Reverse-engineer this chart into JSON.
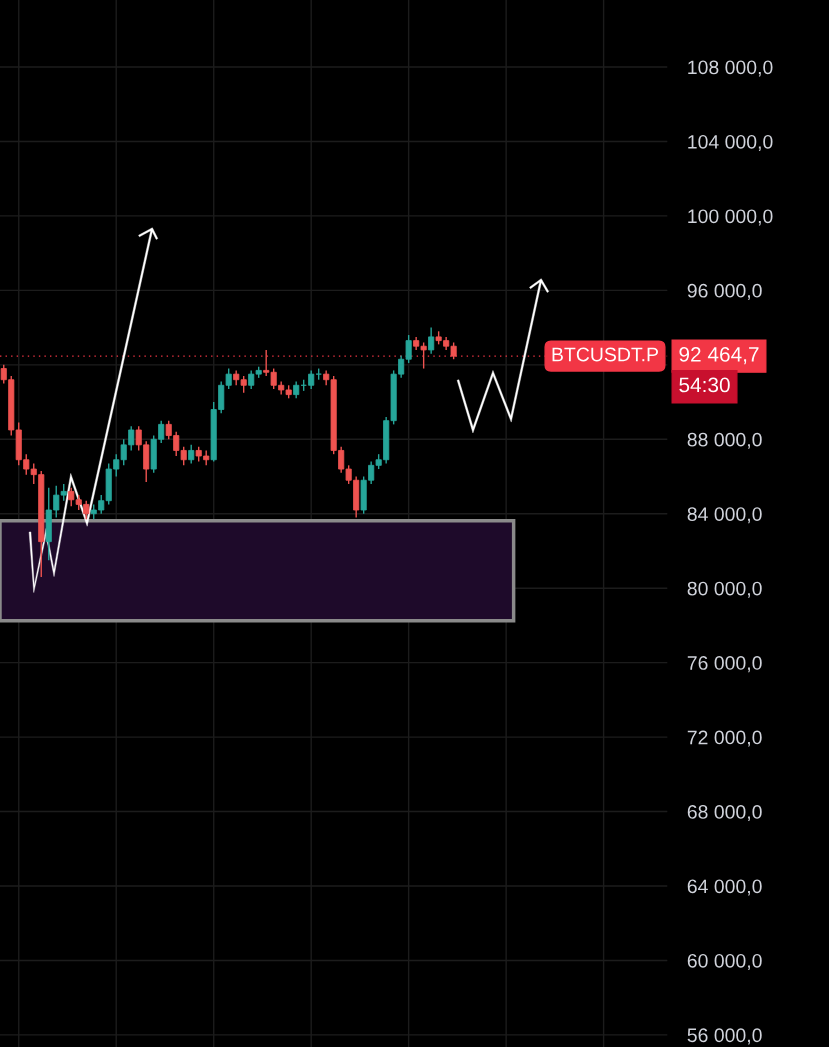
{
  "chart_data": {
    "type": "candlestick",
    "categories": [
      null,
      null,
      null,
      null,
      null,
      null,
      null,
      null,
      null,
      null,
      null,
      null,
      null,
      null,
      null,
      null,
      null,
      null,
      null,
      null,
      null,
      null,
      null,
      null,
      null,
      null,
      null,
      null,
      null,
      null,
      null,
      null,
      null,
      null,
      null,
      null,
      null,
      null,
      null,
      null,
      null,
      null,
      null,
      null,
      null,
      null,
      null,
      null,
      null,
      null,
      null,
      null,
      null,
      null,
      null,
      null,
      null,
      null,
      null,
      null,
      null,
      null,
      null,
      null,
      null,
      null,
      null,
      null,
      null,
      null,
      null,
      null,
      null,
      null,
      null,
      null,
      null,
      null,
      null,
      null,
      null,
      null,
      null,
      null,
      null,
      null,
      null,
      null,
      null
    ],
    "ohlc": [
      [
        91800,
        92000,
        91000,
        91200
      ],
      [
        91200,
        91400,
        88200,
        88500
      ],
      [
        88500,
        88900,
        86600,
        86900
      ],
      [
        86900,
        87200,
        86100,
        86400
      ],
      [
        86400,
        86700,
        85600,
        86100
      ],
      [
        86100,
        86300,
        80600,
        82500
      ],
      [
        82500,
        85400,
        81500,
        84200
      ],
      [
        84200,
        85500,
        83800,
        85000
      ],
      [
        85000,
        85600,
        84700,
        85200
      ],
      [
        85200,
        85400,
        84400,
        84750
      ],
      [
        84750,
        85000,
        84200,
        84500
      ],
      [
        84500,
        84700,
        83700,
        84000
      ],
      [
        84000,
        84500,
        83700,
        84200
      ],
      [
        84200,
        85000,
        84000,
        84700
      ],
      [
        84700,
        86700,
        84500,
        86400
      ],
      [
        86400,
        87200,
        86000,
        86900
      ],
      [
        86900,
        88000,
        86600,
        87700
      ],
      [
        87700,
        88700,
        87400,
        88500
      ],
      [
        88500,
        88700,
        87400,
        87700
      ],
      [
        87700,
        87900,
        85700,
        86400
      ],
      [
        86400,
        88200,
        86200,
        88000
      ],
      [
        88000,
        89000,
        87800,
        88800
      ],
      [
        88800,
        89000,
        88000,
        88200
      ],
      [
        88200,
        88400,
        87100,
        87400
      ],
      [
        87400,
        87600,
        86600,
        86900
      ],
      [
        86900,
        87700,
        86700,
        87400
      ],
      [
        87400,
        87600,
        86800,
        87100
      ],
      [
        87100,
        87400,
        86600,
        86900
      ],
      [
        86900,
        90000,
        86800,
        89600
      ],
      [
        89600,
        91100,
        89400,
        90900
      ],
      [
        90900,
        91800,
        90700,
        91500
      ],
      [
        91500,
        91700,
        90900,
        91200
      ],
      [
        91200,
        91400,
        90500,
        90900
      ],
      [
        90900,
        91700,
        90700,
        91500
      ],
      [
        91500,
        91900,
        91300,
        91700
      ],
      [
        91700,
        92800,
        91400,
        91600
      ],
      [
        91600,
        91800,
        90700,
        90900
      ],
      [
        90900,
        91100,
        90400,
        90650
      ],
      [
        90650,
        90900,
        90200,
        90400
      ],
      [
        90400,
        91100,
        90200,
        90900
      ],
      [
        90900,
        91200,
        90600,
        90900
      ],
      [
        90900,
        91700,
        90700,
        91500
      ],
      [
        91500,
        91800,
        91200,
        91500
      ],
      [
        91500,
        91700,
        90900,
        91200
      ],
      [
        91200,
        91400,
        87200,
        87400
      ],
      [
        87400,
        87600,
        86200,
        86400
      ],
      [
        86400,
        86600,
        85600,
        85800
      ],
      [
        85800,
        86000,
        83800,
        84200
      ],
      [
        84200,
        86000,
        84000,
        85800
      ],
      [
        85800,
        86800,
        85600,
        86600
      ],
      [
        86600,
        87200,
        86400,
        86900
      ],
      [
        86900,
        89200,
        86700,
        89000
      ],
      [
        89000,
        91700,
        88800,
        91500
      ],
      [
        91500,
        92500,
        91300,
        92300
      ],
      [
        92300,
        93600,
        92100,
        93300
      ],
      [
        93300,
        93500,
        92800,
        93000
      ],
      [
        93000,
        93200,
        91800,
        92800
      ],
      [
        92800,
        94000,
        92600,
        93500
      ],
      [
        93500,
        93800,
        93100,
        93300
      ],
      [
        93300,
        93500,
        92800,
        93000
      ],
      [
        93000,
        93200,
        92300,
        92464.7
      ],
      null,
      null,
      null,
      null,
      null,
      null,
      null,
      null,
      null,
      null,
      null,
      null,
      null,
      null,
      null,
      null,
      null,
      null,
      null,
      null,
      null,
      null,
      null,
      null,
      null,
      null,
      null,
      null
    ],
    "colors": [
      "#ef5350",
      "#ef5350",
      "#ef5350",
      "#ef5350",
      "#ef5350",
      "#ef5350",
      "#26a69a",
      "#26a69a",
      "#26a69a",
      "#ef5350",
      "#ef5350",
      "#ef5350",
      "#26a69a",
      "#26a69a",
      "#26a69a",
      "#26a69a",
      "#26a69a",
      "#26a69a",
      "#ef5350",
      "#ef5350",
      "#26a69a",
      "#26a69a",
      "#ef5350",
      "#ef5350",
      "#ef5350",
      "#26a69a",
      "#ef5350",
      "#ef5350",
      "#26a69a",
      "#26a69a",
      "#26a69a",
      "#ef5350",
      "#ef5350",
      "#26a69a",
      "#26a69a",
      "#ef5350",
      "#ef5350",
      "#ef5350",
      "#ef5350",
      "#26a69a",
      "#26a69a",
      "#26a69a",
      "#26a69a",
      "#ef5350",
      "#ef5350",
      "#ef5350",
      "#ef5350",
      "#ef5350",
      "#26a69a",
      "#26a69a",
      "#26a69a",
      "#26a69a",
      "#26a69a",
      "#26a69a",
      "#26a69a",
      "#ef5350",
      "#ef5350",
      "#26a69a",
      "#ef5350",
      "#ef5350",
      "#ef5350",
      null,
      null,
      null,
      null,
      null,
      null,
      null,
      null,
      null,
      null,
      null,
      null,
      null,
      null,
      null,
      null,
      null,
      null,
      null,
      null,
      null,
      null,
      null,
      null,
      null,
      null,
      null,
      null
    ],
    "ylim": [
      55350,
      111600
    ],
    "yticks": [
      {
        "value": 56000,
        "label": "56 000,0"
      },
      {
        "value": 60000,
        "label": "60 000,0"
      },
      {
        "value": 64000,
        "label": "64 000,0"
      },
      {
        "value": 68000,
        "label": "68 000,0"
      },
      {
        "value": 72000,
        "label": "72 000,0"
      },
      {
        "value": 76000,
        "label": "76 000,0"
      },
      {
        "value": 80000,
        "label": "80 000,0"
      },
      {
        "value": 84000,
        "label": "84 000,0"
      },
      {
        "value": 88000,
        "label": "88 000,0"
      },
      {
        "value": 92000,
        "label": null
      },
      {
        "value": 96000,
        "label": "96 000,0"
      },
      {
        "value": 100000,
        "label": "100 000,0"
      },
      {
        "value": 104000,
        "label": "104 000,0"
      },
      {
        "value": 108000,
        "label": "108 000,0"
      }
    ],
    "tick_labels": "y",
    "grid": true,
    "ref_lines": [
      {
        "axis": "y",
        "value": 92464.7,
        "label": "92 464,7",
        "color": "#f23645",
        "line_style": "dotted"
      }
    ],
    "bands": [
      {
        "axis": "y",
        "from": 78250,
        "to": 83620,
        "color": "#1e0a2a"
      }
    ],
    "annotations": [
      "BTCUSDT.P",
      "54:30"
    ]
  }
}
